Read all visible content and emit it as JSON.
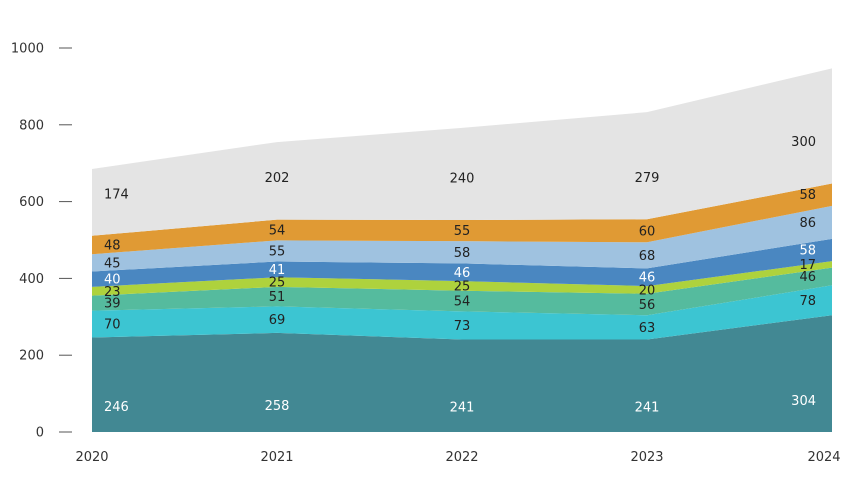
{
  "chart_data": {
    "type": "area",
    "stacked": true,
    "title": "",
    "xlabel": "",
    "ylabel": "",
    "x": [
      "2020",
      "2021",
      "2022",
      "2023",
      "2024"
    ],
    "ylim": [
      0,
      1000
    ],
    "yticks": [
      0,
      200,
      400,
      600,
      800,
      1000
    ],
    "grid": false,
    "legend": "none",
    "series": [
      {
        "values": [
          246,
          258,
          241,
          241,
          304
        ],
        "color": "#428893",
        "label_color": "#ffffff"
      },
      {
        "values": [
          70,
          69,
          73,
          63,
          78
        ],
        "color": "#3cc5d2",
        "label_color": "#222222"
      },
      {
        "values": [
          39,
          51,
          54,
          56,
          46
        ],
        "color": "#55bb9e",
        "label_color": "#222222"
      },
      {
        "values": [
          23,
          25,
          25,
          20,
          17
        ],
        "color": "#aed23d",
        "label_color": "#222222"
      },
      {
        "values": [
          40,
          41,
          46,
          46,
          58
        ],
        "color": "#4a87c1",
        "label_color": "#ffffff"
      },
      {
        "values": [
          45,
          55,
          58,
          68,
          86
        ],
        "color": "#9fc2e0",
        "label_color": "#222222"
      },
      {
        "values": [
          48,
          54,
          55,
          60,
          58
        ],
        "color": "#e09a34",
        "label_color": "#222222"
      },
      {
        "values": [
          174,
          202,
          240,
          279,
          300
        ],
        "color": "#e4e4e4",
        "label_color": "#222222"
      }
    ]
  }
}
